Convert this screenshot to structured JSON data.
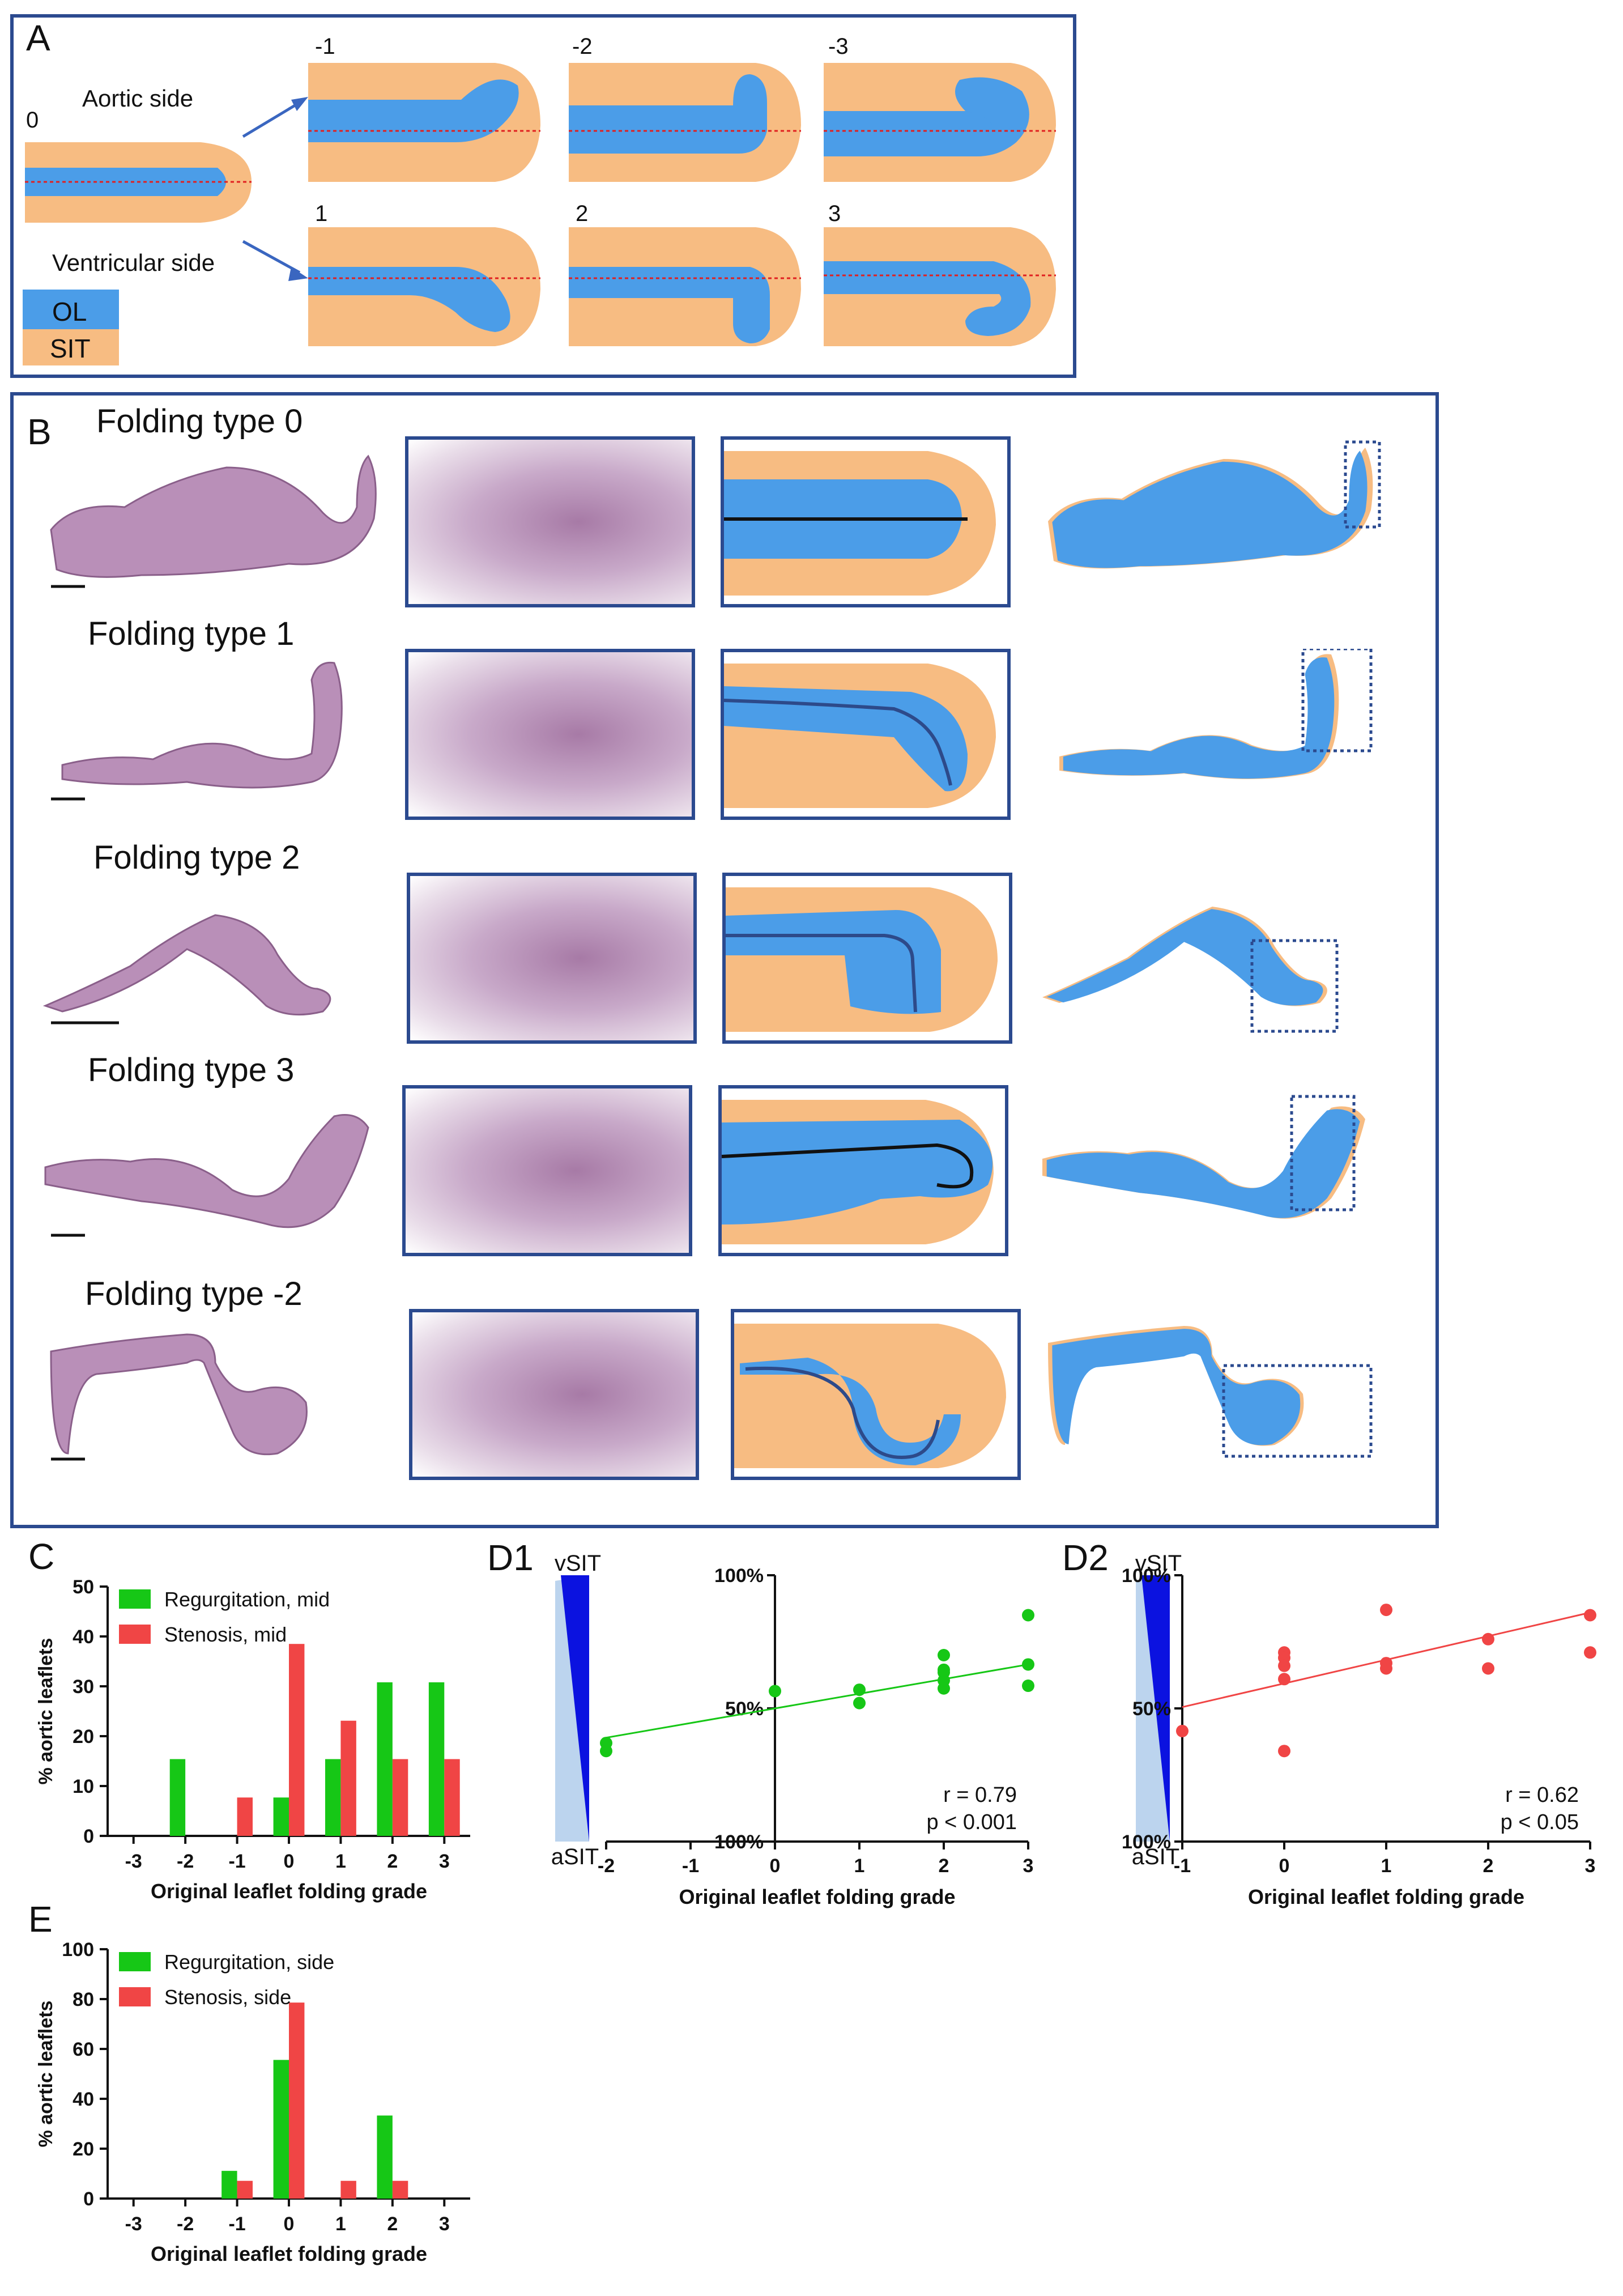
{
  "panelA": {
    "letter": "A",
    "aortic_side": "Aortic side",
    "ventricular_side": "Ventricular side",
    "center_label": "0",
    "top_labels": [
      "-1",
      "-2",
      "-3"
    ],
    "bottom_labels": [
      "1",
      "2",
      "3"
    ],
    "legend": [
      {
        "label": "OL",
        "color": "#4b9de8"
      },
      {
        "label": "SIT",
        "color": "#f7bc82"
      }
    ]
  },
  "panelB": {
    "letter": "B",
    "rows": [
      {
        "title": "Folding type 0"
      },
      {
        "title": "Folding type 1"
      },
      {
        "title": "Folding type 2"
      },
      {
        "title": "Folding type 3"
      },
      {
        "title": "Folding type -2"
      }
    ]
  },
  "colors": {
    "ol": "#4b9de8",
    "sit": "#f7bc82",
    "frame": "#2b4a8f",
    "green": "#16c716",
    "red": "#f04545",
    "stain": "#a77aa6"
  },
  "chart_data": [
    {
      "id": "C",
      "letter": "C",
      "type": "bar",
      "categories": [
        "-3",
        "-2",
        "-1",
        "0",
        "1",
        "2",
        "3"
      ],
      "series": [
        {
          "name": "Regurgitation, mid",
          "color": "#16c716",
          "values": [
            0,
            15.4,
            0,
            7.7,
            15.4,
            30.8,
            30.8
          ]
        },
        {
          "name": "Stenosis, mid",
          "color": "#f04545",
          "values": [
            0,
            0,
            7.7,
            38.5,
            23.1,
            15.4,
            15.4
          ]
        }
      ],
      "ylim": [
        0,
        50
      ],
      "yticks": [
        "0",
        "10",
        "20",
        "30",
        "40",
        "50"
      ],
      "xlabel": "Original leaflet folding grade",
      "ylabel": "% aortic leaflets"
    },
    {
      "id": "D1",
      "letter": "D1",
      "type": "scatter",
      "color": "#16c716",
      "points": [
        [
          -2,
          0.74
        ],
        [
          -2,
          0.68
        ],
        [
          0,
          1.13
        ],
        [
          1,
          1.14
        ],
        [
          1,
          1.04
        ],
        [
          2,
          1.4
        ],
        [
          2,
          1.29
        ],
        [
          2,
          1.27
        ],
        [
          2,
          1.21
        ],
        [
          2,
          1.15
        ],
        [
          3,
          1.7
        ],
        [
          3,
          1.33
        ],
        [
          3,
          1.17
        ]
      ],
      "fit": [
        [
          -2,
          0.78
        ],
        [
          3,
          1.33
        ]
      ],
      "xlim": [
        -2,
        3
      ],
      "xticks": [
        "-2",
        "-1",
        "0",
        "1",
        "2",
        "3"
      ],
      "ylim": [
        0,
        2
      ],
      "yticks": [
        "100%",
        "50%",
        "100%"
      ],
      "r_text": "r = 0.79",
      "p_text": "p < 0.001",
      "top_label": "vSIT",
      "bottom_label": "aSIT",
      "xlabel": "Original leaflet folding grade"
    },
    {
      "id": "D2",
      "letter": "D2",
      "type": "scatter",
      "color": "#f04545",
      "points": [
        [
          -1,
          0.83
        ],
        [
          0,
          1.42
        ],
        [
          0,
          1.38
        ],
        [
          0,
          1.32
        ],
        [
          0,
          1.22
        ],
        [
          0,
          0.68
        ],
        [
          1,
          1.74
        ],
        [
          1,
          1.34
        ],
        [
          1,
          1.3
        ],
        [
          2,
          1.52
        ],
        [
          2,
          1.3
        ],
        [
          3,
          1.7
        ],
        [
          3,
          1.42
        ]
      ],
      "fit": [
        [
          -1,
          1.01
        ],
        [
          3,
          1.72
        ]
      ],
      "xlim": [
        -1,
        3
      ],
      "xticks": [
        "-1",
        "0",
        "1",
        "2",
        "3"
      ],
      "ylim": [
        0,
        2
      ],
      "yticks": [
        "100%",
        "50%",
        "100%"
      ],
      "r_text": "r = 0.62",
      "p_text": "p < 0.05",
      "top_label": "vSIT",
      "bottom_label": "aSIT",
      "xlabel": "Original leaflet folding grade"
    },
    {
      "id": "E",
      "letter": "E",
      "type": "bar",
      "categories": [
        "-3",
        "-2",
        "-1",
        "0",
        "1",
        "2",
        "3"
      ],
      "series": [
        {
          "name": "Regurgitation, side",
          "color": "#16c716",
          "values": [
            0,
            0,
            11.1,
            55.6,
            0,
            33.3,
            0
          ]
        },
        {
          "name": "Stenosis, side",
          "color": "#f04545",
          "values": [
            0,
            0,
            7.1,
            78.6,
            7.1,
            7.1,
            0
          ]
        }
      ],
      "ylim": [
        0,
        100
      ],
      "yticks": [
        "0",
        "20",
        "40",
        "60",
        "80",
        "100"
      ],
      "xlabel": "Original leaflet folding grade",
      "ylabel": "% aortic leaflets"
    }
  ]
}
